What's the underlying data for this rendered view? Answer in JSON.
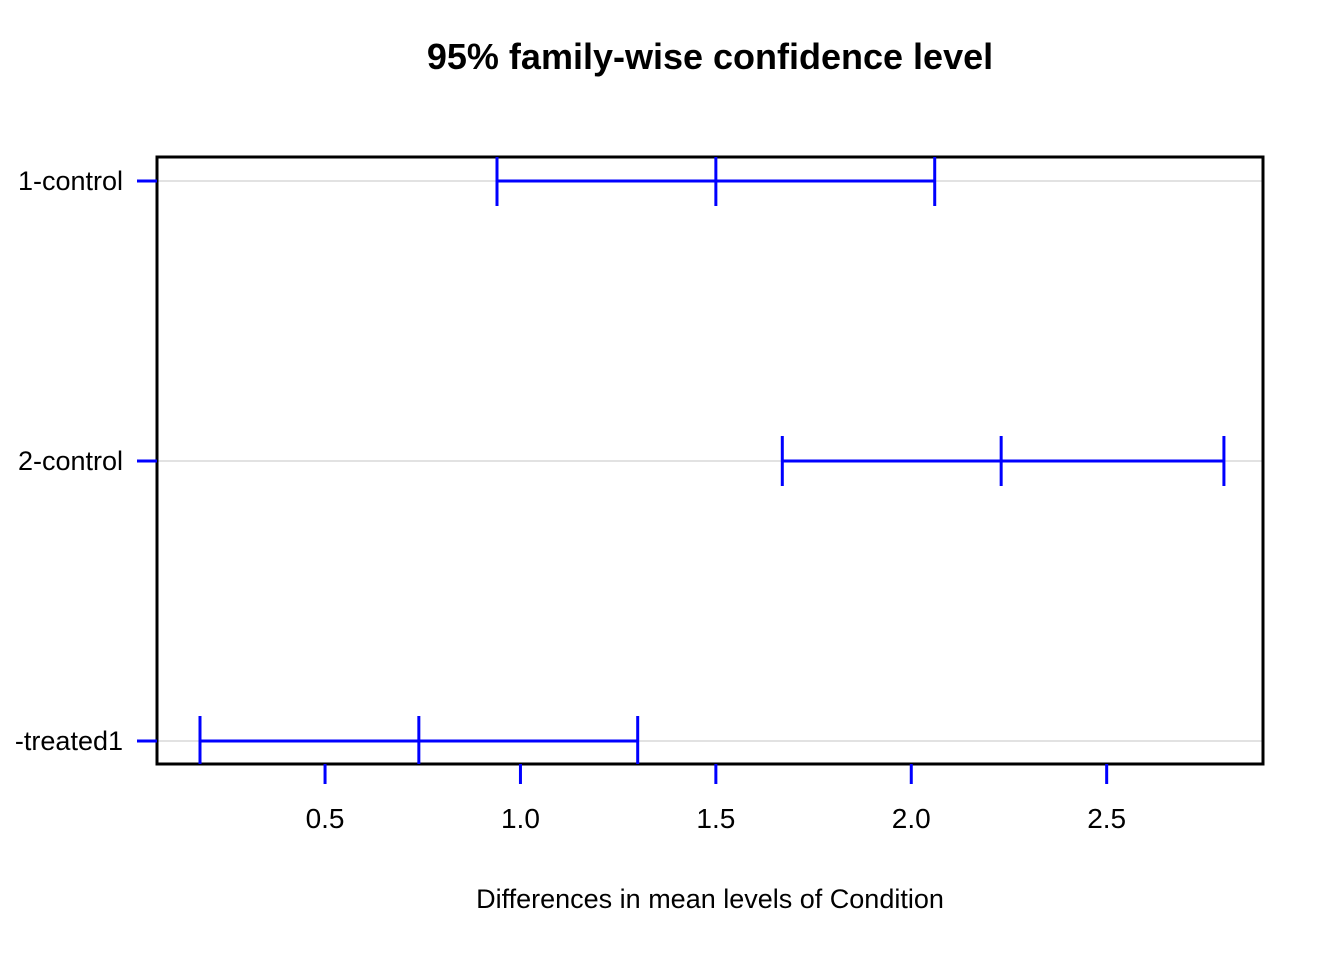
{
  "chart_data": {
    "type": "errorbar",
    "subtype": "tukey-hsd-confidence-intervals",
    "title": "95% family-wise confidence level",
    "xlabel": "Differences in mean levels of Condition",
    "ylabel": "",
    "orientation": "horizontal",
    "legend_position": "none",
    "grid": "light horizontal reference line at each comparison",
    "xlim": [
      0.07,
      2.9
    ],
    "x_ticks": [
      {
        "value": 0.5,
        "label": "0.5"
      },
      {
        "value": 1.0,
        "label": "1.0"
      },
      {
        "value": 1.5,
        "label": "1.5"
      },
      {
        "value": 2.0,
        "label": "2.0"
      },
      {
        "value": 2.5,
        "label": "2.5"
      }
    ],
    "comparisons": [
      {
        "label": "1-control",
        "lower": 0.94,
        "center": 1.5,
        "upper": 2.06
      },
      {
        "label": "2-control",
        "lower": 1.67,
        "center": 2.23,
        "upper": 2.8
      },
      {
        "label": "-treated1",
        "lower": 0.18,
        "center": 0.74,
        "upper": 1.3
      }
    ],
    "colors": {
      "interval": "#0000ff",
      "tick_marks": "#0000ff",
      "reference_line": "#e2e2e2",
      "box": "#000000",
      "text": "#000000",
      "background": "#ffffff"
    }
  }
}
